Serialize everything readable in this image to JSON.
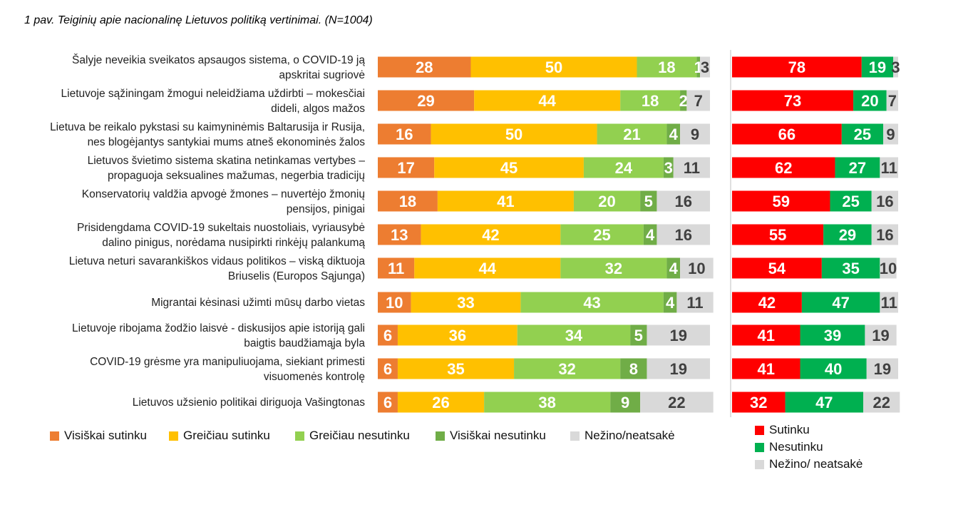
{
  "title": "1 pav. Teiginių apie nacionalinę Lietuvos politiką vertinimai. (N=1004)",
  "colors": {
    "visiskai_sutinku": "#ED7D31",
    "greiciau_sutinku": "#FFC000",
    "greiciau_nesutinku": "#92D050",
    "visiskai_nesutinku": "#70AD47",
    "nezino": "#D9D9D9",
    "sutinku": "#FF0000",
    "nesutinku": "#00B050"
  },
  "legend_left": [
    "Visiškai sutinku",
    "Greičiau sutinku",
    "Greičiau nesutinku",
    "Visiškai nesutinku",
    "Nežino/neatsakė"
  ],
  "legend_right": [
    "Sutinku",
    "Nesutinku",
    "Nežino/ neatsakė"
  ],
  "chart_data": [
    {
      "type": "bar",
      "stacked": true,
      "orientation": "horizontal",
      "categories": [
        [
          "Šalyje neveikia sveikatos apsaugos sistema, o COVID-19 ją",
          "apskritai sugriovė"
        ],
        [
          "Lietuvoje sąžiningam žmogui neleidžiama uždirbti – mokesčiai",
          "dideli, algos mažos"
        ],
        [
          "Lietuva be reikalo pykstasi su kaimyninėmis Baltarusija ir Rusija,",
          "nes blogėjantys santykiai mums atneš ekonominės žalos"
        ],
        [
          "Lietuvos švietimo sistema skatina netinkamas vertybes –",
          "propaguoja seksualines mažumas, negerbia tradicijų"
        ],
        [
          "Konservatorių valdžia apvogė žmones – nuvertėjo žmonių",
          "pensijos, pinigai"
        ],
        [
          "Prisidengdama COVID-19 sukeltais nuostoliais, vyriausybė",
          "dalino pinigus, norėdama nusipirkti rinkėjų palankumą"
        ],
        [
          "Lietuva neturi savarankiškos vidaus politikos – viską diktuoja",
          "Briuselis (Europos Sąjunga)"
        ],
        [
          "Migrantai kėsinasi užimti mūsų darbo vietas"
        ],
        [
          "Lietuvoje ribojama žodžio laisvė - diskusijos apie istoriją gali",
          "baigtis baudžiamąja byla"
        ],
        [
          "COVID-19 grėsme yra manipuliuojama, siekiant primesti",
          "visuomenės kontrolę"
        ],
        [
          "Lietuvos užsienio politikai diriguoja Vašingtonas"
        ]
      ],
      "series": [
        {
          "name": "Visiškai sutinku",
          "values": [
            28,
            29,
            16,
            17,
            18,
            13,
            11,
            10,
            6,
            6,
            6
          ]
        },
        {
          "name": "Greičiau sutinku",
          "values": [
            50,
            44,
            50,
            45,
            41,
            42,
            44,
            33,
            36,
            35,
            26
          ]
        },
        {
          "name": "Greičiau nesutinku",
          "values": [
            18,
            18,
            21,
            24,
            20,
            25,
            32,
            43,
            34,
            32,
            38
          ]
        },
        {
          "name": "Visiškai nesutinku",
          "values": [
            1,
            2,
            4,
            3,
            5,
            4,
            4,
            4,
            5,
            8,
            9
          ]
        },
        {
          "name": "Nežino/neatsakė",
          "values": [
            3,
            7,
            9,
            11,
            16,
            16,
            10,
            11,
            19,
            19,
            22
          ]
        }
      ],
      "legend": "bottom"
    },
    {
      "type": "bar",
      "stacked": true,
      "orientation": "horizontal",
      "series": [
        {
          "name": "Sutinku",
          "values": [
            78,
            73,
            66,
            62,
            59,
            55,
            54,
            42,
            41,
            41,
            32
          ]
        },
        {
          "name": "Nesutinku",
          "values": [
            19,
            20,
            25,
            27,
            25,
            29,
            35,
            47,
            39,
            40,
            47
          ]
        },
        {
          "name": "Nežino/ neatsakė",
          "values": [
            3,
            7,
            9,
            11,
            16,
            16,
            10,
            11,
            19,
            19,
            22
          ]
        }
      ],
      "legend": "bottom"
    }
  ]
}
